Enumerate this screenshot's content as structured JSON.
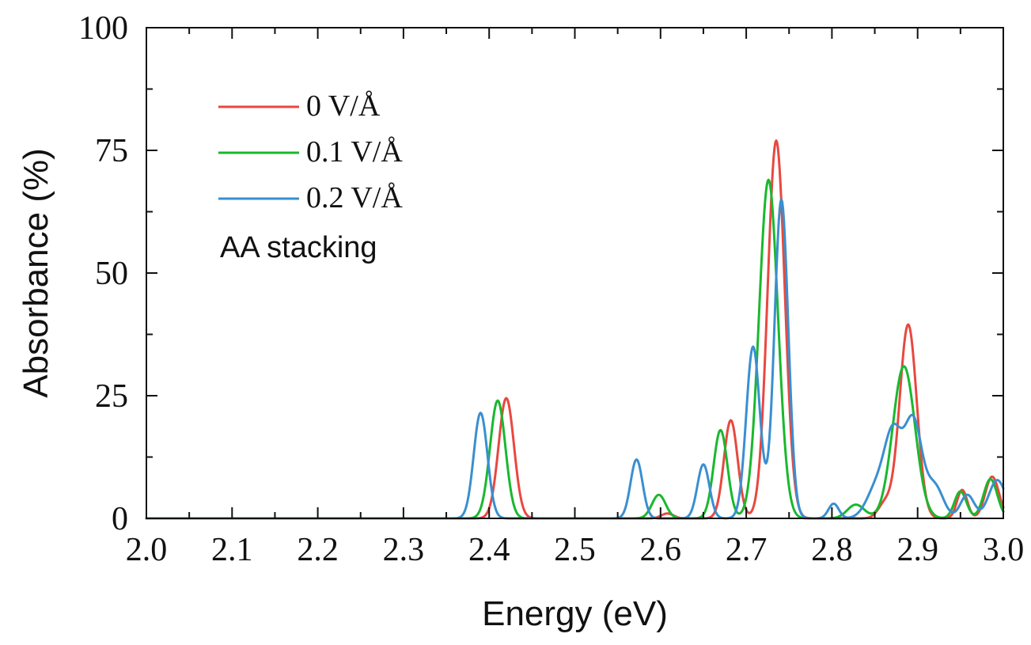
{
  "chart_data": {
    "type": "line",
    "title": "",
    "xlabel": "Energy (eV)",
    "ylabel": "Absorbance (%)",
    "xlim": [
      2.0,
      3.0
    ],
    "ylim": [
      0,
      100
    ],
    "x_ticks": [
      "2.0",
      "2.1",
      "2.2",
      "2.3",
      "2.4",
      "2.5",
      "2.6",
      "2.7",
      "2.8",
      "2.9",
      "3.0"
    ],
    "y_ticks": [
      "0",
      "25",
      "50",
      "75",
      "100"
    ],
    "grid": false,
    "legend_position": "top-left",
    "annotation": "AA stacking",
    "colors": {
      "axis": "#111111"
    },
    "series": [
      {
        "name": "0 V/Å",
        "color": "#e8483f",
        "peaks": [
          {
            "x": 2.42,
            "y": 24.5,
            "width": 0.009
          },
          {
            "x": 2.608,
            "y": 1.0,
            "width": 0.007
          },
          {
            "x": 2.682,
            "y": 20.0,
            "width": 0.008
          },
          {
            "x": 2.735,
            "y": 77.0,
            "width": 0.01
          },
          {
            "x": 2.862,
            "y": 3.0,
            "width": 0.008
          },
          {
            "x": 2.889,
            "y": 39.5,
            "width": 0.01
          },
          {
            "x": 2.952,
            "y": 5.8,
            "width": 0.006
          },
          {
            "x": 2.987,
            "y": 8.5,
            "width": 0.008
          }
        ]
      },
      {
        "name": "0.1 V/Å",
        "color": "#19b82e",
        "peaks": [
          {
            "x": 2.41,
            "y": 24.0,
            "width": 0.009
          },
          {
            "x": 2.598,
            "y": 4.8,
            "width": 0.008
          },
          {
            "x": 2.67,
            "y": 18.0,
            "width": 0.008
          },
          {
            "x": 2.726,
            "y": 69.0,
            "width": 0.011
          },
          {
            "x": 2.828,
            "y": 2.8,
            "width": 0.01
          },
          {
            "x": 2.884,
            "y": 31.0,
            "width": 0.013
          },
          {
            "x": 2.95,
            "y": 5.5,
            "width": 0.007
          },
          {
            "x": 2.985,
            "y": 8.0,
            "width": 0.008
          }
        ]
      },
      {
        "name": "0.2 V/Å",
        "color": "#3a8fd0",
        "peaks": [
          {
            "x": 2.39,
            "y": 21.5,
            "width": 0.008
          },
          {
            "x": 2.572,
            "y": 12.0,
            "width": 0.007
          },
          {
            "x": 2.65,
            "y": 11.0,
            "width": 0.007
          },
          {
            "x": 2.708,
            "y": 35.0,
            "width": 0.008
          },
          {
            "x": 2.741,
            "y": 65.0,
            "width": 0.008
          },
          {
            "x": 2.802,
            "y": 3.0,
            "width": 0.006
          },
          {
            "x": 2.853,
            "y": 6.5,
            "width": 0.012
          },
          {
            "x": 2.872,
            "y": 16.0,
            "width": 0.01
          },
          {
            "x": 2.895,
            "y": 19.5,
            "width": 0.01
          },
          {
            "x": 2.92,
            "y": 6.5,
            "width": 0.01
          },
          {
            "x": 2.958,
            "y": 4.8,
            "width": 0.008
          },
          {
            "x": 2.993,
            "y": 7.8,
            "width": 0.01
          }
        ]
      }
    ]
  }
}
